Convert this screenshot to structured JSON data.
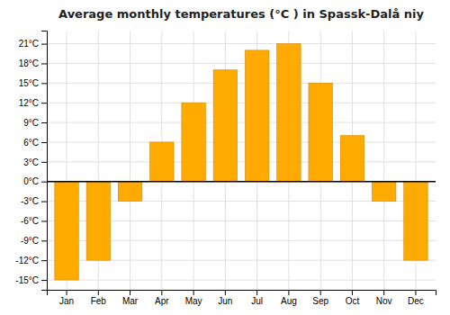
{
  "chart_data": {
    "type": "bar",
    "title": "Average monthly temperatures (°C ) in Spassk-Dalå niy",
    "categories": [
      "Jan",
      "Feb",
      "Mar",
      "Apr",
      "May",
      "Jun",
      "Jul",
      "Aug",
      "Sep",
      "Oct",
      "Nov",
      "Dec"
    ],
    "values": [
      -15,
      -12,
      -3,
      6,
      12,
      17,
      20,
      21,
      15,
      7,
      -3,
      -12
    ],
    "color": "#FFAA00",
    "ylim": [
      -16.5,
      23
    ],
    "yticks": [
      {
        "value": -15,
        "label": "-15°C"
      },
      {
        "value": -12,
        "label": "-12°C"
      },
      {
        "value": -9,
        "label": "-9°C"
      },
      {
        "value": -6,
        "label": "-6°C"
      },
      {
        "value": -3,
        "label": "-3°C"
      },
      {
        "value": 0,
        "label": "0°C"
      },
      {
        "value": 3,
        "label": "3°C"
      },
      {
        "value": 6,
        "label": "6°C"
      },
      {
        "value": 9,
        "label": "9°C"
      },
      {
        "value": 12,
        "label": "12°C"
      },
      {
        "value": 15,
        "label": "15°C"
      },
      {
        "value": 18,
        "label": "18°C"
      },
      {
        "value": 21,
        "label": "21°C"
      }
    ],
    "grid": true
  }
}
